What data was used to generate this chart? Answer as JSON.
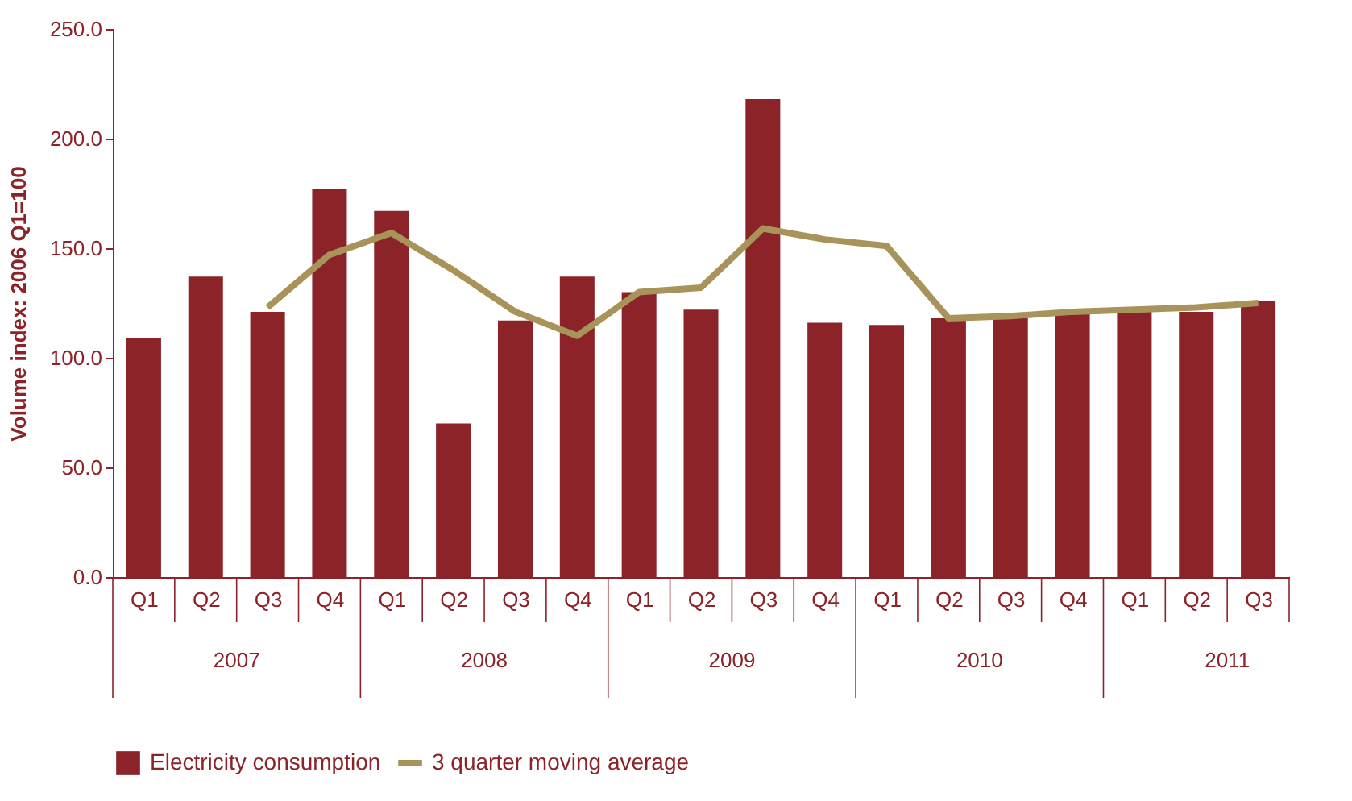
{
  "chart_data": {
    "type": "bar",
    "ylabel": "Volume index: 2006 Q1=100",
    "categories": [
      "Q1",
      "Q2",
      "Q3",
      "Q4",
      "Q1",
      "Q2",
      "Q3",
      "Q4",
      "Q1",
      "Q2",
      "Q3",
      "Q4",
      "Q1",
      "Q2",
      "Q3",
      "Q4",
      "Q1",
      "Q2",
      "Q3"
    ],
    "annotations": [
      "2007",
      "2008",
      "2009",
      "2010",
      "2011"
    ],
    "series": [
      {
        "name": "Electricity consumption",
        "color": "#8b2329",
        "values": [
          109,
          137,
          121,
          177,
          167,
          70,
          117,
          137,
          130,
          122,
          218,
          116,
          115,
          118,
          119,
          120,
          121,
          121,
          126
        ]
      },
      {
        "name": "3 quarter moving average",
        "type": "line",
        "color": "#a8935a",
        "values": [
          null,
          null,
          123,
          147,
          157,
          140,
          121,
          110,
          130,
          132,
          159,
          154,
          151,
          118,
          119,
          121,
          122,
          123,
          125
        ]
      }
    ],
    "ylim": [
      0,
      250
    ],
    "yticks": [
      {
        "value": 0,
        "label": "0.0"
      },
      {
        "value": 50,
        "label": "50.0"
      },
      {
        "value": 100,
        "label": "100.0"
      },
      {
        "value": 150,
        "label": "150.0"
      },
      {
        "value": 200,
        "label": "200.0"
      },
      {
        "value": 250,
        "label": "250.0"
      }
    ],
    "grid": false,
    "legend": "bottom"
  }
}
